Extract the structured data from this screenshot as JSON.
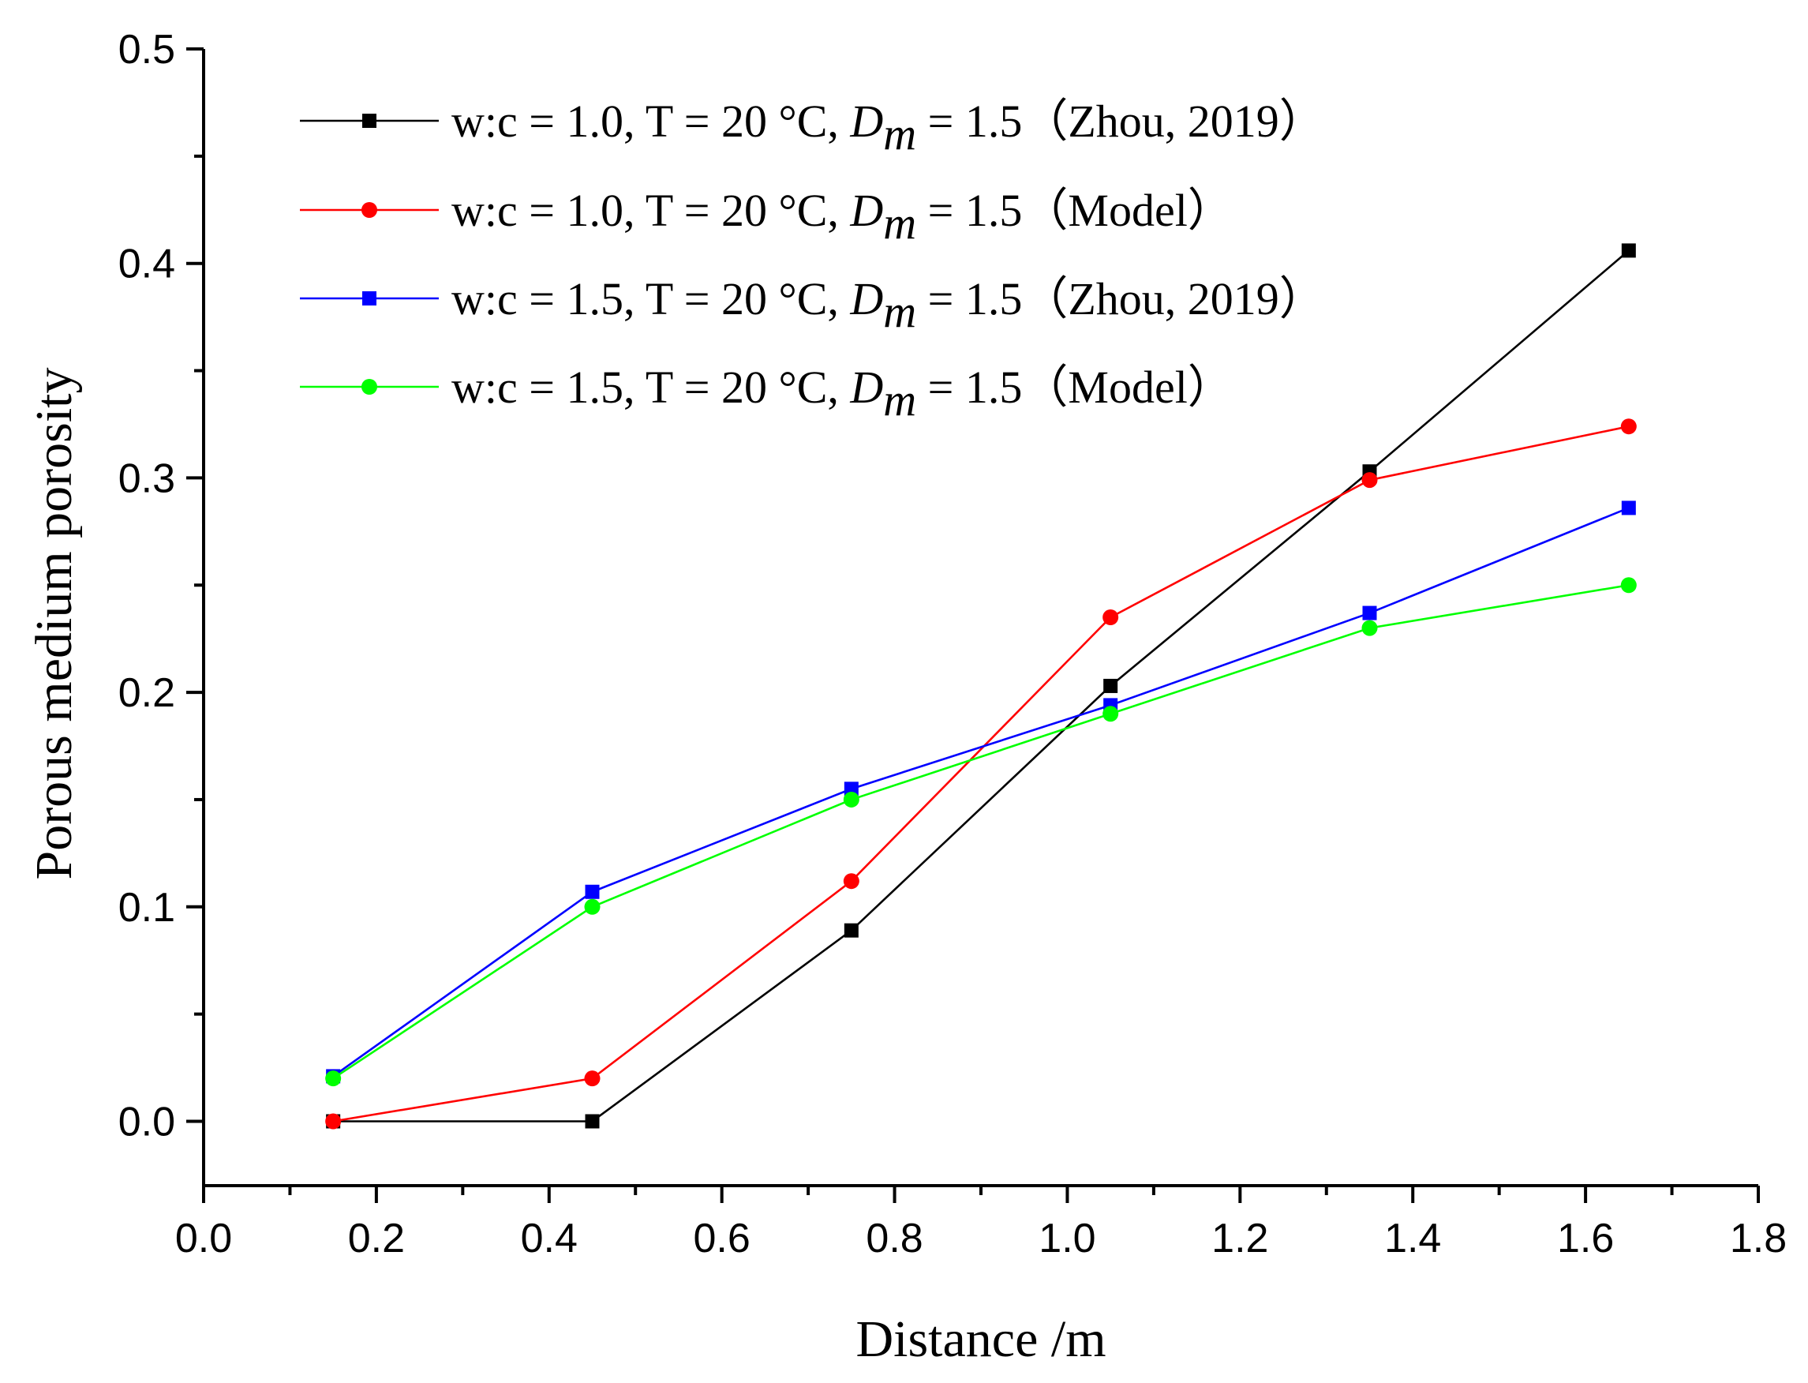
{
  "chart_data": {
    "type": "line",
    "title": "",
    "xlabel": "Distance /m",
    "ylabel": "Porous medium porosity",
    "xlim": [
      0.0,
      1.8
    ],
    "ylim": [
      -0.03,
      0.5
    ],
    "xticks": [
      "0.0",
      "0.2",
      "0.4",
      "0.6",
      "0.8",
      "1.0",
      "1.2",
      "1.4",
      "1.6",
      "1.8"
    ],
    "yticks": [
      "0.0",
      "0.1",
      "0.2",
      "0.3",
      "0.4",
      "0.5"
    ],
    "grid": false,
    "legend_position": "top-left",
    "x": [
      0.15,
      0.45,
      0.75,
      1.05,
      1.35,
      1.65
    ],
    "series": [
      {
        "name": "w:c = 1.0, T = 20 °C, Dm = 1.5（Zhou, 2019）",
        "label_prefix": "w:c = 1.0, T = 20 °C, ",
        "label_symbol": "D",
        "label_subscript": "m",
        "label_suffix": " = 1.5（Zhou, 2019）",
        "color": "#000000",
        "marker": "square",
        "values": [
          0.0,
          0.0,
          0.089,
          0.203,
          0.303,
          0.406
        ]
      },
      {
        "name": "w:c = 1.0, T = 20 °C, Dm = 1.5（Model）",
        "label_prefix": "w:c = 1.0, T = 20 °C, ",
        "label_symbol": "D",
        "label_subscript": "m",
        "label_suffix": " = 1.5（Model）",
        "color": "#ff0000",
        "marker": "circle",
        "values": [
          0.0,
          0.02,
          0.112,
          0.235,
          0.299,
          0.324
        ]
      },
      {
        "name": "w:c = 1.5, T = 20 °C, Dm = 1.5（Zhou, 2019）",
        "label_prefix": "w:c = 1.5, T = 20 °C, ",
        "label_symbol": "D",
        "label_subscript": "m",
        "label_suffix": " = 1.5（Zhou, 2019）",
        "color": "#0000ff",
        "marker": "square",
        "values": [
          0.021,
          0.107,
          0.155,
          0.194,
          0.237,
          0.286
        ]
      },
      {
        "name": "w:c = 1.5, T = 20 °C, Dm = 1.5（Model）",
        "label_prefix": "w:c = 1.5, T = 20 °C, ",
        "label_symbol": "D",
        "label_subscript": "m",
        "label_suffix": " = 1.5（Model）",
        "color": "#00ff00",
        "marker": "circle",
        "values": [
          0.02,
          0.1,
          0.15,
          0.19,
          0.23,
          0.25
        ]
      }
    ]
  }
}
